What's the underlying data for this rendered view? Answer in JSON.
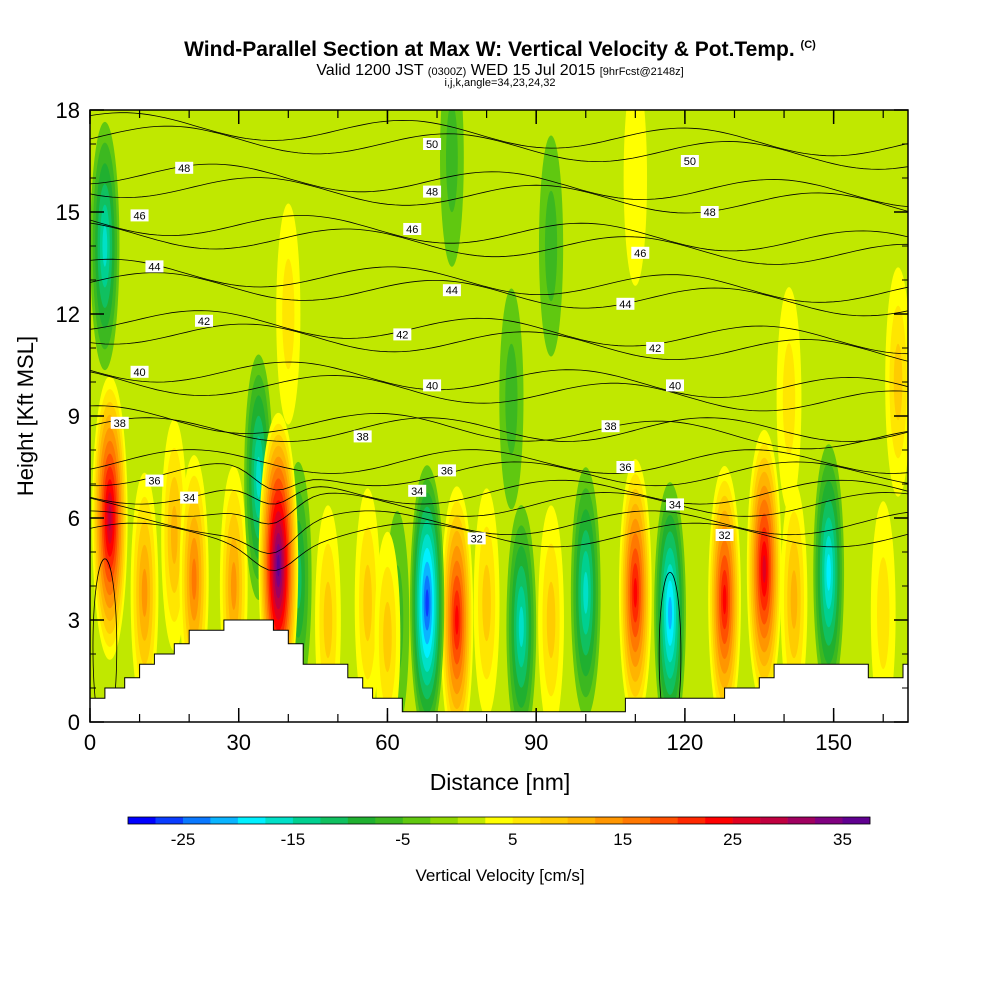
{
  "header": {
    "title": "Wind-Parallel Section at Max W: Vertical Velocity & Pot.Temp.",
    "title_unit": "(C)",
    "valid_prefix": "Valid 1200 JST",
    "valid_zulu": "(0300Z)",
    "valid_date": "WED 15 Jul 2015",
    "forecast": "[9hrFcst@2148z]",
    "indices": "i,j,k,angle=34,23,24,32"
  },
  "chart_data": {
    "type": "heatmap",
    "xlabel": "Distance [nm]",
    "ylabel": "Height [Kft MSL]",
    "xlim": [
      0,
      165
    ],
    "ylim": [
      0,
      18
    ],
    "xticks": [
      0,
      30,
      60,
      90,
      120,
      150
    ],
    "yticks": [
      0,
      3,
      6,
      9,
      12,
      15,
      18
    ],
    "colorbar": {
      "label": "Vertical Velocity [cm/s]",
      "ticks": [
        -25,
        -15,
        -5,
        5,
        15,
        25,
        35
      ],
      "colors": [
        "#0000ff",
        "#0a3cff",
        "#0a78ff",
        "#0ab4ff",
        "#00f0ff",
        "#00e0c8",
        "#00d090",
        "#10c060",
        "#20b030",
        "#3cb820",
        "#60c810",
        "#90d800",
        "#c0e800",
        "#ffff00",
        "#ffe600",
        "#ffcc00",
        "#ffb400",
        "#ff9600",
        "#ff7800",
        "#ff5000",
        "#ff2800",
        "#ff0000",
        "#e00020",
        "#c00040",
        "#a00060",
        "#800080",
        "#600090"
      ]
    },
    "terrain_kft": [
      [
        0,
        0.7
      ],
      [
        3,
        0.7
      ],
      [
        3,
        1.0
      ],
      [
        7,
        1.0
      ],
      [
        7,
        1.3
      ],
      [
        10,
        1.3
      ],
      [
        10,
        1.7
      ],
      [
        13,
        1.7
      ],
      [
        13,
        2.0
      ],
      [
        17,
        2.0
      ],
      [
        17,
        2.3
      ],
      [
        20,
        2.3
      ],
      [
        20,
        2.7
      ],
      [
        27,
        2.7
      ],
      [
        27,
        3.0
      ],
      [
        37,
        3.0
      ],
      [
        37,
        2.7
      ],
      [
        40,
        2.7
      ],
      [
        40,
        2.3
      ],
      [
        43,
        2.3
      ],
      [
        43,
        1.7
      ],
      [
        52,
        1.7
      ],
      [
        52,
        1.3
      ],
      [
        55,
        1.3
      ],
      [
        55,
        1.0
      ],
      [
        57,
        1.0
      ],
      [
        57,
        0.7
      ],
      [
        63,
        0.7
      ],
      [
        63,
        0.3
      ],
      [
        108,
        0.3
      ],
      [
        108,
        0.7
      ],
      [
        128,
        0.7
      ],
      [
        128,
        1.0
      ],
      [
        135,
        1.0
      ],
      [
        135,
        1.3
      ],
      [
        138,
        1.3
      ],
      [
        138,
        1.7
      ],
      [
        157,
        1.7
      ],
      [
        157,
        1.3
      ],
      [
        164,
        1.3
      ],
      [
        164,
        1.7
      ],
      [
        167,
        1.7
      ]
    ],
    "w_features": [
      {
        "x": 4,
        "y": 6.0,
        "w": 28
      },
      {
        "x": 11,
        "y": 3.8,
        "w": 12
      },
      {
        "x": 21,
        "y": 4.2,
        "w": 15
      },
      {
        "x": 17,
        "y": 5.5,
        "w": 9
      },
      {
        "x": 29,
        "y": 4.0,
        "w": 12
      },
      {
        "x": 38,
        "y": 4.6,
        "w": 36
      },
      {
        "x": 34,
        "y": 7.2,
        "w": -14
      },
      {
        "x": 42,
        "y": 4.2,
        "w": -10
      },
      {
        "x": 48,
        "y": 3.0,
        "w": 8
      },
      {
        "x": 56,
        "y": 3.5,
        "w": 8
      },
      {
        "x": 60,
        "y": 2.5,
        "w": 8
      },
      {
        "x": 62,
        "y": 3.0,
        "w": -4
      },
      {
        "x": 68,
        "y": 3.5,
        "w": -25
      },
      {
        "x": 74,
        "y": 3.0,
        "w": 22
      },
      {
        "x": 80,
        "y": 3.5,
        "w": 8
      },
      {
        "x": 87,
        "y": 2.8,
        "w": -16
      },
      {
        "x": 93,
        "y": 3.0,
        "w": 8
      },
      {
        "x": 100,
        "y": 3.8,
        "w": -16
      },
      {
        "x": 110,
        "y": 3.8,
        "w": 22
      },
      {
        "x": 117,
        "y": 3.2,
        "w": -20
      },
      {
        "x": 128,
        "y": 3.6,
        "w": 22
      },
      {
        "x": 136,
        "y": 4.5,
        "w": 26
      },
      {
        "x": 142,
        "y": 3.6,
        "w": 10
      },
      {
        "x": 149,
        "y": 4.4,
        "w": -18
      },
      {
        "x": 160,
        "y": 3.2,
        "w": 6
      },
      {
        "x": 3,
        "y": 14.0,
        "w": -15
      },
      {
        "x": 73,
        "y": 16.6,
        "w": -4
      },
      {
        "x": 93,
        "y": 14.0,
        "w": -5
      },
      {
        "x": 85,
        "y": 9.5,
        "w": -5
      },
      {
        "x": 141,
        "y": 9.5,
        "w": 6
      },
      {
        "x": 163,
        "y": 10.0,
        "w": 8
      },
      {
        "x": 40,
        "y": 12.0,
        "w": 5
      },
      {
        "x": 110,
        "y": 16.0,
        "w": 3
      }
    ],
    "theta_levels": [
      32,
      34,
      36,
      38,
      40,
      42,
      44,
      46,
      48,
      50
    ],
    "theta_labels": [
      {
        "text": "48",
        "x": 19,
        "y": 16.3
      },
      {
        "text": "46",
        "x": 10,
        "y": 14.9
      },
      {
        "text": "44",
        "x": 13,
        "y": 13.4
      },
      {
        "text": "42",
        "x": 23,
        "y": 11.8
      },
      {
        "text": "40",
        "x": 10,
        "y": 10.3
      },
      {
        "text": "38",
        "x": 6,
        "y": 8.8
      },
      {
        "text": "36",
        "x": 13,
        "y": 7.1
      },
      {
        "text": "34",
        "x": 20,
        "y": 6.6
      },
      {
        "text": "50",
        "x": 69,
        "y": 17.0
      },
      {
        "text": "48",
        "x": 69,
        "y": 15.6
      },
      {
        "text": "46",
        "x": 65,
        "y": 14.5
      },
      {
        "text": "44",
        "x": 73,
        "y": 12.7
      },
      {
        "text": "42",
        "x": 63,
        "y": 11.4
      },
      {
        "text": "40",
        "x": 69,
        "y": 9.9
      },
      {
        "text": "38",
        "x": 55,
        "y": 8.4
      },
      {
        "text": "36",
        "x": 72,
        "y": 7.4
      },
      {
        "text": "34",
        "x": 66,
        "y": 6.8
      },
      {
        "text": "32",
        "x": 78,
        "y": 5.4
      },
      {
        "text": "50",
        "x": 121,
        "y": 16.5
      },
      {
        "text": "48",
        "x": 125,
        "y": 15.0
      },
      {
        "text": "46",
        "x": 111,
        "y": 13.8
      },
      {
        "text": "44",
        "x": 108,
        "y": 12.3
      },
      {
        "text": "42",
        "x": 114,
        "y": 11.0
      },
      {
        "text": "40",
        "x": 118,
        "y": 9.9
      },
      {
        "text": "38",
        "x": 105,
        "y": 8.7
      },
      {
        "text": "36",
        "x": 108,
        "y": 7.5
      },
      {
        "text": "34",
        "x": 118,
        "y": 6.4
      },
      {
        "text": "32",
        "x": 128,
        "y": 5.5
      }
    ]
  }
}
